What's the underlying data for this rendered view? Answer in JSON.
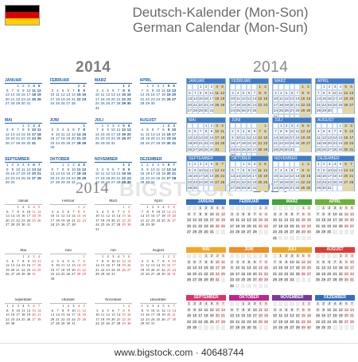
{
  "title": {
    "line1": "Deutsch-Kalender (Mon-Son)",
    "line2": "German Calendar (Mon-Sun)"
  },
  "flag_colors": [
    "#000000",
    "#dd0000",
    "#ffce00"
  ],
  "year": "2014",
  "months_de_upper": [
    "JANUAR",
    "FEBRUAR",
    "MÄRZ",
    "APRIL",
    "MAI",
    "JUNI",
    "JULI",
    "AUGUST",
    "SEPTEMBER",
    "OKTOBER",
    "NOVEMBER",
    "DEZEMBER"
  ],
  "months_de": [
    "Januar",
    "Februar",
    "März",
    "April",
    "Mai",
    "Juni",
    "Juli",
    "August",
    "September",
    "Oktober",
    "November",
    "Dezember"
  ],
  "header_colors": [
    "#2f6fc8",
    "#2f6fc8",
    "#3fa535",
    "#69b336",
    "#f2a623",
    "#f28d1f",
    "#f0a520",
    "#e23a32",
    "#e1306c",
    "#c1248e",
    "#7a3aa0",
    "#2f6fc8"
  ],
  "watermark": "BIGSTOCK",
  "footer": "www.bigstock.com · 40648744"
}
